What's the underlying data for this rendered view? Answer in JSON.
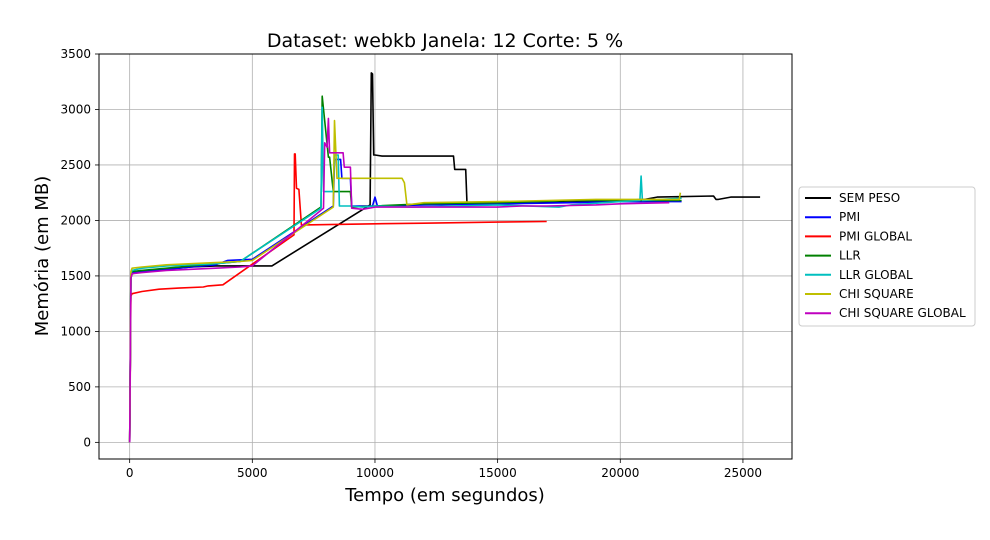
{
  "chart_data": {
    "type": "line",
    "title": "Dataset: webkb Janela: 12 Corte: 5 %",
    "xlabel": "Tempo (em segundos)",
    "ylabel": "Memória (em MB)",
    "xlim": [
      -1250,
      27000
    ],
    "ylim": [
      -150,
      3500
    ],
    "xticks": [
      0,
      5000,
      10000,
      15000,
      20000,
      25000
    ],
    "xtick_labels": [
      "0",
      "5000",
      "10000",
      "15000",
      "20000",
      "25000"
    ],
    "yticks": [
      0,
      500,
      1000,
      1500,
      2000,
      2500,
      3000,
      3500
    ],
    "ytick_labels": [
      "0",
      "500",
      "1000",
      "1500",
      "2000",
      "2500",
      "3000",
      "3500"
    ],
    "grid": true,
    "legend_position": "right",
    "series": [
      {
        "name": "SEM PESO",
        "color": "#000000",
        "x": [
          0,
          50,
          100,
          500,
          1500,
          2500,
          3500,
          4000,
          4800,
          5800,
          9800,
          9850,
          9900,
          9950,
          10000,
          10300,
          11000,
          13200,
          13250,
          13700,
          13750,
          15000,
          17000,
          20000,
          21000,
          21500,
          23800,
          23900,
          24000,
          24500,
          25700
        ],
        "y": [
          0,
          1480,
          1520,
          1540,
          1560,
          1580,
          1590,
          1590,
          1590,
          1590,
          2140,
          3330,
          3320,
          2590,
          2590,
          2580,
          2580,
          2580,
          2460,
          2460,
          2150,
          2150,
          2160,
          2180,
          2190,
          2210,
          2220,
          2190,
          2190,
          2210,
          2210
        ]
      },
      {
        "name": "PMI",
        "color": "#0000ff",
        "x": [
          0,
          50,
          100,
          500,
          1500,
          2500,
          3500,
          4000,
          5000,
          8300,
          8350,
          8600,
          8650,
          9000,
          9050,
          9900,
          10000,
          10100,
          10300,
          12000,
          15000,
          18000,
          20000,
          22500
        ],
        "y": [
          0,
          1500,
          1530,
          1540,
          1560,
          1580,
          1600,
          1640,
          1650,
          2130,
          2550,
          2550,
          2380,
          2380,
          2130,
          2130,
          2210,
          2130,
          2130,
          2140,
          2150,
          2160,
          2170,
          2170
        ]
      },
      {
        "name": "PMI GLOBAL",
        "color": "#ff0000",
        "x": [
          0,
          50,
          100,
          500,
          1200,
          2000,
          3000,
          3200,
          3800,
          6700,
          6720,
          6750,
          6800,
          6900,
          7000,
          7100,
          10000,
          12000,
          15000,
          17000
        ],
        "y": [
          0,
          1320,
          1340,
          1360,
          1380,
          1390,
          1400,
          1410,
          1420,
          1870,
          2600,
          2600,
          2290,
          2280,
          1960,
          1960,
          1970,
          1975,
          1985,
          1990
        ]
      },
      {
        "name": "LLR",
        "color": "#008000",
        "x": [
          0,
          50,
          100,
          500,
          1500,
          2500,
          3500,
          4500,
          7800,
          7850,
          8100,
          8150,
          8300,
          8350,
          9000,
          9050,
          10000,
          12000,
          15000,
          18000,
          22500
        ],
        "y": [
          0,
          1510,
          1540,
          1550,
          1570,
          1590,
          1610,
          1630,
          2120,
          3120,
          2570,
          2570,
          2260,
          2260,
          2260,
          2120,
          2130,
          2150,
          2160,
          2180,
          2180
        ]
      },
      {
        "name": "LLR GLOBAL",
        "color": "#00bfbf",
        "x": [
          0,
          50,
          100,
          500,
          1500,
          2500,
          3500,
          4500,
          7800,
          7850,
          7900,
          7950,
          8300,
          8350,
          8500,
          8550,
          9000,
          9500,
          10000,
          11500,
          15000,
          17500,
          18000,
          20000,
          20800,
          20850,
          20900,
          22500
        ],
        "y": [
          0,
          1520,
          1550,
          1570,
          1590,
          1600,
          1610,
          1630,
          2110,
          3020,
          2260,
          2260,
          2260,
          2590,
          2590,
          2130,
          2130,
          2120,
          2130,
          2120,
          2140,
          2120,
          2140,
          2170,
          2180,
          2400,
          2180,
          2200
        ]
      },
      {
        "name": "CHI SQUARE",
        "color": "#bfbf00",
        "x": [
          0,
          50,
          100,
          500,
          1500,
          2500,
          3500,
          4500,
          5000,
          8300,
          8350,
          8450,
          8500,
          9000,
          11000,
          11100,
          11200,
          11300,
          12000,
          15000,
          17000,
          19000,
          20000,
          22400,
          22450
        ],
        "y": [
          0,
          1540,
          1570,
          1580,
          1600,
          1610,
          1620,
          1630,
          1640,
          2120,
          2900,
          2380,
          2380,
          2380,
          2380,
          2380,
          2340,
          2140,
          2160,
          2170,
          2180,
          2190,
          2190,
          2190,
          2250
        ]
      },
      {
        "name": "CHI SQUARE GLOBAL",
        "color": "#bf00bf",
        "x": [
          0,
          50,
          100,
          500,
          1500,
          2500,
          3500,
          4500,
          5000,
          7900,
          7950,
          8050,
          8100,
          8150,
          8400,
          8700,
          8750,
          9000,
          9050,
          9500,
          10000,
          12000,
          15000,
          16000,
          17000,
          19000,
          20000,
          22000
        ],
        "y": [
          0,
          1480,
          1520,
          1530,
          1550,
          1560,
          1570,
          1580,
          1590,
          2110,
          2700,
          2660,
          2920,
          2610,
          2610,
          2610,
          2480,
          2480,
          2110,
          2100,
          2120,
          2120,
          2120,
          2130,
          2130,
          2140,
          2150,
          2160
        ]
      }
    ]
  }
}
